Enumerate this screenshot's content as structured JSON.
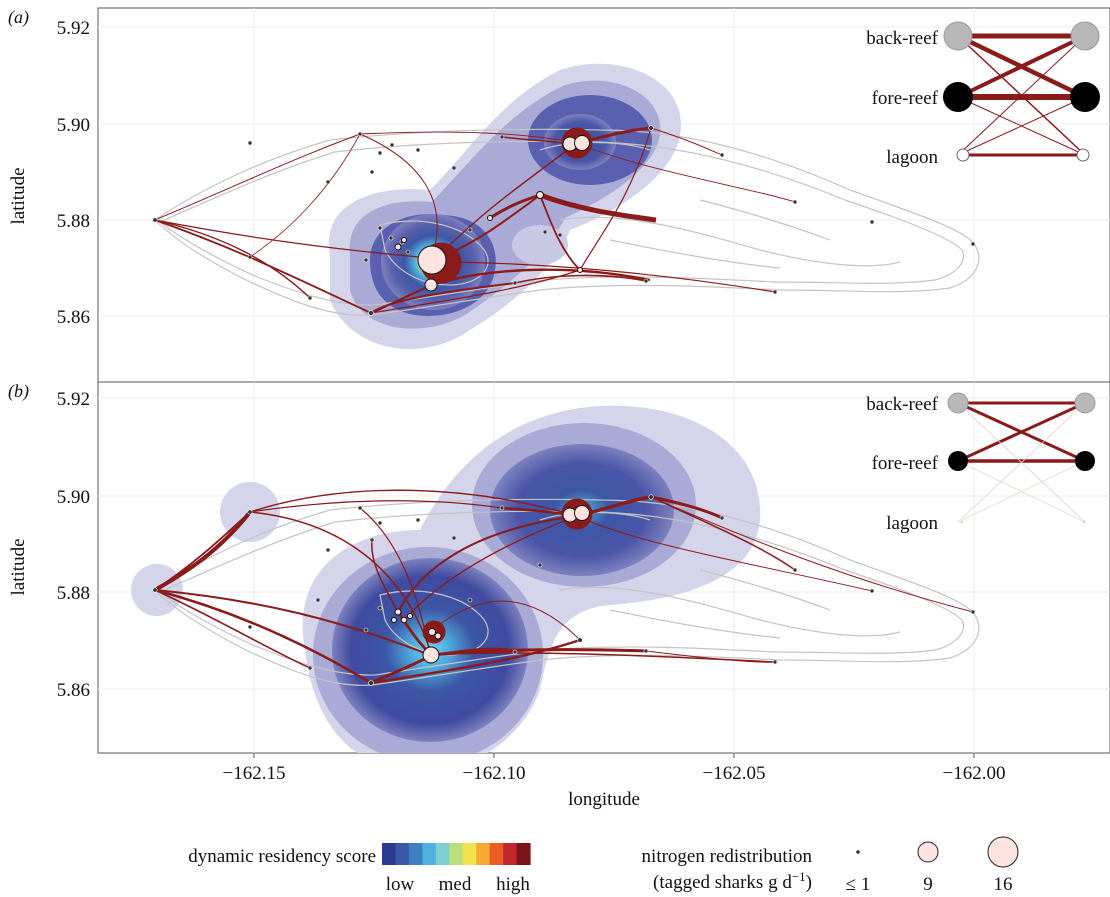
{
  "panels": [
    {
      "label": "(a)",
      "y_ticks": [
        "5.92",
        "5.90",
        "5.88",
        "5.86"
      ]
    },
    {
      "label": "(b)",
      "y_ticks": [
        "5.92",
        "5.90",
        "5.88",
        "5.86"
      ]
    }
  ],
  "axes": {
    "ylabel": "latitude",
    "xlabel": "longitude",
    "x_ticks": [
      "−162.15",
      "−162.10",
      "−162.05",
      "−162.00"
    ]
  },
  "inset": {
    "labels": [
      "back-reef",
      "fore-reef",
      "lagoon"
    ],
    "node_colors": {
      "back-reef": "#b8b8b8",
      "fore-reef": "#000000",
      "lagoon": "#ffffff"
    }
  },
  "legend": {
    "residency_title": "dynamic residency score",
    "residency_labels": [
      "low",
      "med",
      "high"
    ],
    "residency_colors": [
      "#2b3990",
      "#3c57a6",
      "#3f7fc4",
      "#4fb0e0",
      "#7fd0d0",
      "#b8df7a",
      "#f2e34c",
      "#f7a933",
      "#ee5a24",
      "#c1272d",
      "#7a1418"
    ],
    "nitrogen_title_line1": "nitrogen redistribution",
    "nitrogen_title_line2": "(tagged sharks g d",
    "nitrogen_title_sup": "−1",
    "nitrogen_title_end": ")",
    "nitrogen_sizes": [
      "≤ 1",
      "9",
      "16"
    ]
  },
  "colors": {
    "edge": "#8b1a1a",
    "outline": "#c4c4c4",
    "node_fill": "#fde4e0",
    "kde_outer": "#c9c9e6"
  }
}
